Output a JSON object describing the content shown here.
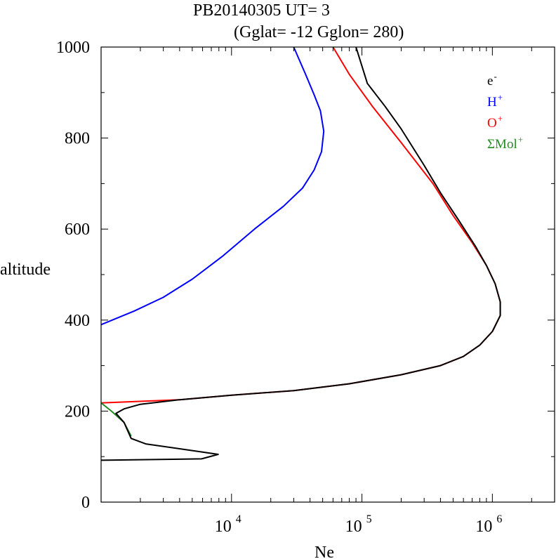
{
  "chart_data": {
    "type": "line",
    "title": "PB20140305   UT=  3",
    "subtitle": "(Gglat= -12   Gglon=  280)",
    "xlabel": "Ne",
    "ylabel": "altitude",
    "xscale": "log",
    "xlim": [
      1000,
      3000000
    ],
    "ylim": [
      0,
      1000
    ],
    "x_ticks": [
      {
        "value": 10000,
        "base": "10",
        "exp": "4"
      },
      {
        "value": 100000,
        "base": "10",
        "exp": "5"
      },
      {
        "value": 1000000,
        "base": "10",
        "exp": "6"
      }
    ],
    "y_ticks": [
      {
        "value": 0,
        "label": "0"
      },
      {
        "value": 200,
        "label": "200"
      },
      {
        "value": 400,
        "label": "400"
      },
      {
        "value": 600,
        "label": "600"
      },
      {
        "value": 800,
        "label": "800"
      },
      {
        "value": 1000,
        "label": "1000"
      }
    ],
    "grid": false,
    "legend_position": "top-right",
    "series": [
      {
        "name": "e",
        "sup": "-",
        "color": "#000000",
        "points": [
          [
            1000,
            92
          ],
          [
            5900,
            95
          ],
          [
            7900,
            105
          ],
          [
            6000,
            110
          ],
          [
            2200,
            128
          ],
          [
            1700,
            140
          ],
          [
            1500,
            175
          ],
          [
            1300,
            195
          ],
          [
            1500,
            205
          ],
          [
            2000,
            215
          ],
          [
            4000,
            225
          ],
          [
            10000,
            235
          ],
          [
            30000,
            245
          ],
          [
            80000,
            260
          ],
          [
            200000,
            280
          ],
          [
            400000,
            300
          ],
          [
            600000,
            320
          ],
          [
            800000,
            345
          ],
          [
            1000000,
            375
          ],
          [
            1150000,
            410
          ],
          [
            1150000,
            440
          ],
          [
            1050000,
            480
          ],
          [
            900000,
            520
          ],
          [
            750000,
            560
          ],
          [
            550000,
            620
          ],
          [
            400000,
            680
          ],
          [
            300000,
            740
          ],
          [
            200000,
            820
          ],
          [
            150000,
            870
          ],
          [
            110000,
            920
          ],
          [
            90000,
            1000
          ]
        ]
      },
      {
        "name": "H",
        "sup": "+",
        "color": "#0000ff",
        "points": [
          [
            1000,
            390
          ],
          [
            1800,
            420
          ],
          [
            3000,
            450
          ],
          [
            5000,
            490
          ],
          [
            8500,
            540
          ],
          [
            15000,
            600
          ],
          [
            25000,
            650
          ],
          [
            35000,
            690
          ],
          [
            43000,
            730
          ],
          [
            49000,
            770
          ],
          [
            51000,
            815
          ],
          [
            48000,
            860
          ],
          [
            43000,
            895
          ],
          [
            37000,
            940
          ],
          [
            30000,
            1000
          ]
        ]
      },
      {
        "name": "O",
        "sup": "+",
        "color": "#ff0000",
        "points": [
          [
            1000,
            218
          ],
          [
            4000,
            225
          ],
          [
            10000,
            235
          ],
          [
            30000,
            245
          ],
          [
            80000,
            260
          ],
          [
            200000,
            280
          ],
          [
            400000,
            300
          ],
          [
            600000,
            320
          ],
          [
            800000,
            345
          ],
          [
            1000000,
            375
          ],
          [
            1150000,
            410
          ],
          [
            1150000,
            440
          ],
          [
            1050000,
            480
          ],
          [
            900000,
            520
          ],
          [
            700000,
            570
          ],
          [
            500000,
            630
          ],
          [
            350000,
            700
          ],
          [
            200000,
            790
          ],
          [
            120000,
            870
          ],
          [
            80000,
            940
          ],
          [
            60000,
            1000
          ]
        ]
      },
      {
        "name": "ΣMol",
        "sup": "+",
        "color": "#228b22",
        "points": [
          [
            1000,
            218
          ],
          [
            1200,
            200
          ],
          [
            1500,
            175
          ],
          [
            1700,
            145
          ]
        ]
      }
    ]
  }
}
